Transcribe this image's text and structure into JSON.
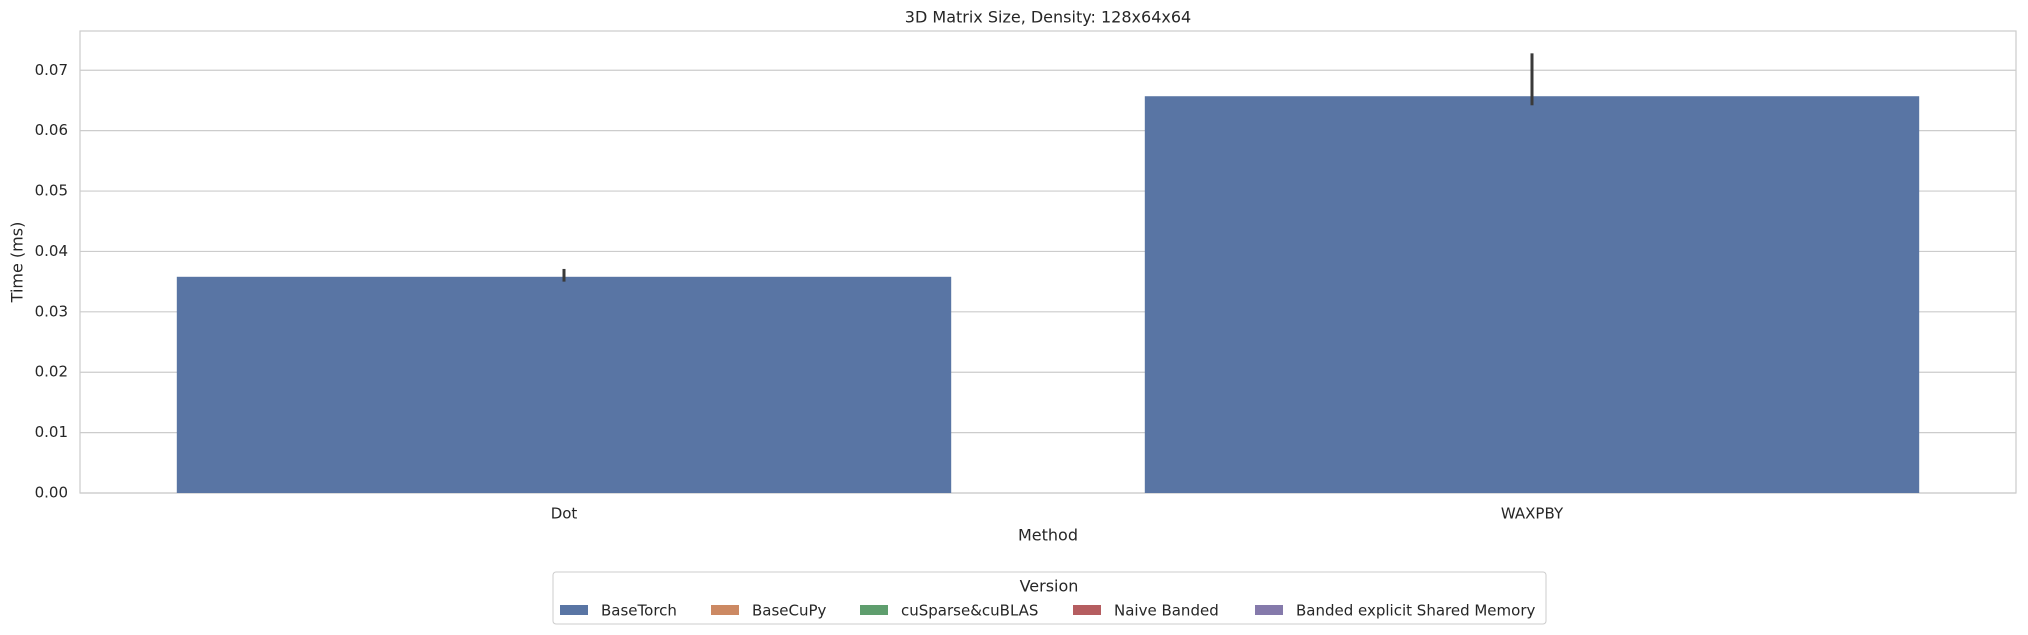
{
  "chart_data": {
    "type": "bar",
    "title": "3D Matrix Size, Density: 128x64x64",
    "x_label": "Method",
    "y_label": "Time (ms)",
    "categories": [
      "Dot",
      "WAXPBY"
    ],
    "series": [
      {
        "name": "BaseTorch",
        "color": "#5975a4",
        "values": [
          0.0358,
          0.0657
        ],
        "ci": [
          [
            0.035,
            0.0371
          ],
          [
            0.0642,
            0.0728
          ]
        ]
      },
      {
        "name": "BaseCuPy",
        "color": "#cc8963",
        "values": [
          null,
          null
        ]
      },
      {
        "name": "cuSparse&cuBLAS",
        "color": "#5f9e6e",
        "values": [
          null,
          null
        ]
      },
      {
        "name": "Naive Banded",
        "color": "#b55d60",
        "values": [
          null,
          null
        ]
      },
      {
        "name": "Banded explicit Shared Memory",
        "color": "#857aab",
        "values": [
          null,
          null
        ]
      }
    ],
    "legend_title": "Version",
    "legend_position": "bottom",
    "ylim": [
      0,
      0.0765
    ],
    "yticks": [
      {
        "value": 0,
        "label": "0.00"
      },
      0.01,
      0.02,
      0.03,
      0.04,
      0.05,
      0.06,
      0.07
    ],
    "grid": true
  }
}
